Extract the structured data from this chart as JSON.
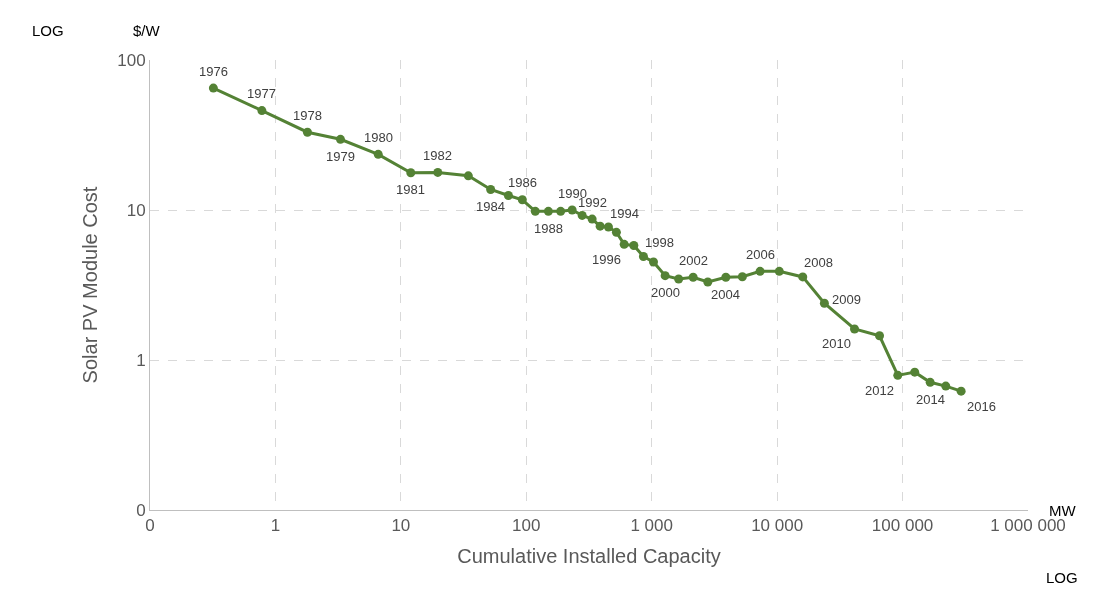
{
  "chart_data": {
    "type": "line",
    "xlabel": "Cumulative Installed Capacity",
    "ylabel": "Solar PV Module Cost",
    "annotations": [
      "LOG",
      "$/W",
      "MW",
      "LOG",
      {
        "text": "1976",
        "x": 0.32,
        "y": 65
      },
      {
        "text": "1977",
        "x": 0.78,
        "y": 46
      },
      {
        "text": "1978",
        "x": 1.8,
        "y": 33
      },
      {
        "text": "1979",
        "x": 3.3,
        "y": 29.6
      },
      {
        "text": "1980",
        "x": 6.6,
        "y": 23.5
      },
      {
        "text": "1981",
        "x": 12,
        "y": 17.7
      },
      {
        "text": "1982",
        "x": 19.7,
        "y": 17.8
      },
      {
        "text": "1984",
        "x": 52,
        "y": 13.7
      },
      {
        "text": "1986",
        "x": 93,
        "y": 11.7
      },
      {
        "text": "1988",
        "x": 150,
        "y": 9.8
      },
      {
        "text": "1990",
        "x": 232,
        "y": 10
      },
      {
        "text": "1992",
        "x": 335,
        "y": 8.7
      },
      {
        "text": "1994",
        "x": 452,
        "y": 7.7
      },
      {
        "text": "1996",
        "x": 603,
        "y": 5.9
      },
      {
        "text": "1998",
        "x": 859,
        "y": 4.9
      },
      {
        "text": "2000",
        "x": 1280,
        "y": 3.65
      },
      {
        "text": "2002",
        "x": 2140,
        "y": 3.56
      },
      {
        "text": "2004",
        "x": 3900,
        "y": 3.56
      },
      {
        "text": "2006",
        "x": 7310,
        "y": 3.9
      },
      {
        "text": "2008",
        "x": 16000,
        "y": 3.58
      },
      {
        "text": "2009",
        "x": 23800,
        "y": 2.39
      },
      {
        "text": "2010",
        "x": 41400,
        "y": 1.61
      },
      {
        "text": "2012",
        "x": 91600,
        "y": 0.79
      },
      {
        "text": "2014",
        "x": 166000,
        "y": 0.71
      },
      {
        "text": "2016",
        "x": 293000,
        "y": 0.62
      }
    ],
    "x": [
      0.32,
      0.78,
      1.8,
      3.3,
      6.6,
      12,
      19.7,
      34.5,
      52,
      72,
      93,
      118,
      150,
      188,
      232,
      279,
      335,
      388,
      452,
      523,
      603,
      720,
      859,
      1033,
      1280,
      1640,
      2140,
      2800,
      3900,
      5280,
      7310,
      10400,
      16000,
      23800,
      41400,
      65500,
      91600,
      125000,
      166000,
      221000,
      293000
    ],
    "series": [
      {
        "color": "#548235",
        "values": [
          65,
          46,
          33,
          29.6,
          23.5,
          17.7,
          17.8,
          16.9,
          13.7,
          12.5,
          11.7,
          9.8,
          9.8,
          9.8,
          10,
          9.2,
          8.7,
          7.8,
          7.7,
          7.1,
          5.9,
          5.8,
          4.9,
          4.5,
          3.65,
          3.47,
          3.56,
          3.31,
          3.56,
          3.59,
          3.9,
          3.9,
          3.58,
          2.39,
          1.61,
          1.45,
          0.79,
          0.83,
          0.71,
          0.67,
          0.62
        ]
      }
    ],
    "log": "xy",
    "xlim": [
      0.1,
      1000000
    ],
    "ylim": [
      0.1,
      100
    ],
    "xticks": [
      {
        "value": 0.1,
        "label": "0"
      },
      1,
      10,
      100,
      {
        "value": 1000,
        "label": "1 000"
      },
      {
        "value": 10000,
        "label": "10 000"
      },
      {
        "value": 100000,
        "label": "100 000"
      },
      {
        "value": 1000000,
        "label": "1 000 000"
      }
    ],
    "yticks": [
      {
        "value": 0.1,
        "label": "0"
      },
      1,
      10,
      100
    ],
    "grid": true,
    "marker": "circle",
    "line_style": "solid"
  }
}
